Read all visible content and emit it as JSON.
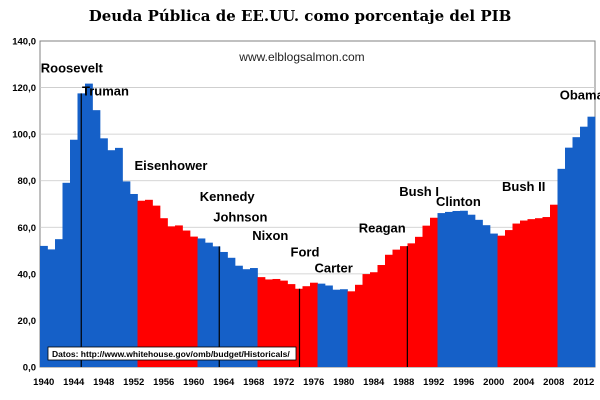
{
  "chart_data": {
    "type": "bar",
    "title": "Deuda Pública de EE.UU.  como porcentaje del PIB",
    "watermark": "www.elblogsalmon.com",
    "source": "Datos: http://www.whitehouse.gov/omb/budget/Historicals/",
    "ylim": [
      0,
      140
    ],
    "yticks": [
      "0,0",
      "20,0",
      "40,0",
      "60,0",
      "80,0",
      "100,0",
      "120,0",
      "140,0"
    ],
    "xticks": [
      "1940",
      "1944",
      "1948",
      "1952",
      "1956",
      "1960",
      "1964",
      "1968",
      "1972",
      "1976",
      "1980",
      "1984",
      "1988",
      "1992",
      "1996",
      "2000",
      "2004",
      "2008",
      "2012"
    ],
    "grid": true,
    "colors": {
      "democrat": "#1560c8",
      "republican": "#ff0000"
    },
    "years": [
      1940,
      1941,
      1942,
      1943,
      1944,
      1945,
      1946,
      1947,
      1948,
      1949,
      1950,
      1951,
      1952,
      1953,
      1954,
      1955,
      1956,
      1957,
      1958,
      1959,
      1960,
      1961,
      1962,
      1963,
      1964,
      1965,
      1966,
      1967,
      1968,
      1969,
      1970,
      1971,
      1972,
      1973,
      1974,
      1975,
      1976,
      1977,
      1978,
      1979,
      1980,
      1981,
      1982,
      1983,
      1984,
      1985,
      1986,
      1987,
      1988,
      1989,
      1990,
      1991,
      1992,
      1993,
      1994,
      1995,
      1996,
      1997,
      1998,
      1999,
      2000,
      2001,
      2002,
      2003,
      2004,
      2005,
      2006,
      2007,
      2008,
      2009,
      2010,
      2011,
      2012,
      2013
    ],
    "values": [
      52,
      50.5,
      54.9,
      79.1,
      97.6,
      117.5,
      121.7,
      110.3,
      98.2,
      93.1,
      94.1,
      79.7,
      74.3,
      71.4,
      71.8,
      69.3,
      63.9,
      60.4,
      60.8,
      58.6,
      56,
      55.2,
      53.4,
      51.8,
      49.4,
      46.9,
      43.5,
      42,
      42.5,
      38.6,
      37.6,
      37.8,
      37.1,
      35.6,
      33.6,
      34.7,
      36.2,
      35.8,
      35,
      33.2,
      33.4,
      32.5,
      35.3,
      39.9,
      40.7,
      43.8,
      48.2,
      50.4,
      51.9,
      53.1,
      55.9,
      60.7,
      64.1,
      66.1,
      66.6,
      67,
      67.1,
      65.4,
      63.2,
      60.9,
      57.3,
      56.4,
      58.8,
      61.6,
      62.9,
      63.5,
      63.9,
      64.4,
      69.7,
      85.1,
      94.2,
      98.7,
      103.2,
      107.5
    ],
    "party": [
      "D",
      "D",
      "D",
      "D",
      "D",
      "D",
      "D",
      "D",
      "D",
      "D",
      "D",
      "D",
      "D",
      "R",
      "R",
      "R",
      "R",
      "R",
      "R",
      "R",
      "R",
      "D",
      "D",
      "D",
      "D",
      "D",
      "D",
      "D",
      "D",
      "R",
      "R",
      "R",
      "R",
      "R",
      "R",
      "R",
      "R",
      "D",
      "D",
      "D",
      "D",
      "R",
      "R",
      "R",
      "R",
      "R",
      "R",
      "R",
      "R",
      "R",
      "R",
      "R",
      "R",
      "D",
      "D",
      "D",
      "D",
      "D",
      "D",
      "D",
      "D",
      "R",
      "R",
      "R",
      "R",
      "R",
      "R",
      "R",
      "R",
      "D",
      "D",
      "D",
      "D",
      "D"
    ],
    "divider_years": [
      1945.5,
      1963.9,
      1974.6,
      1988.98
    ],
    "presidents": [
      {
        "name": "Roosevelt",
        "year": 1940.1,
        "y": 126.5,
        "anchor": "start"
      },
      {
        "name": "Truman",
        "year": 1945.6,
        "y": 116.5,
        "anchor": "start"
      },
      {
        "name": "Eisenhower",
        "year": 1952.6,
        "y": 84.5,
        "anchor": "start"
      },
      {
        "name": "Kennedy",
        "year": 1961.3,
        "y": 71.2,
        "anchor": "start"
      },
      {
        "name": "Johnson",
        "year": 1963.1,
        "y": 62.5,
        "anchor": "start"
      },
      {
        "name": "Nixon",
        "year": 1968.3,
        "y": 54.5,
        "anchor": "start"
      },
      {
        "name": "Ford",
        "year": 1973.4,
        "y": 47.5,
        "anchor": "start"
      },
      {
        "name": "Carter",
        "year": 1976.6,
        "y": 40.5,
        "anchor": "start"
      },
      {
        "name": "Reagan",
        "year": 1982.5,
        "y": 57.8,
        "anchor": "start"
      },
      {
        "name": "Bush I",
        "year": 1987.9,
        "y": 73.5,
        "anchor": "start"
      },
      {
        "name": "Clinton",
        "year": 1992.8,
        "y": 69.2,
        "anchor": "start"
      },
      {
        "name": "Bush II",
        "year": 2001.6,
        "y": 75.5,
        "anchor": "start"
      },
      {
        "name": "Obama",
        "year": 2009.3,
        "y": 114.8,
        "anchor": "start"
      }
    ]
  }
}
